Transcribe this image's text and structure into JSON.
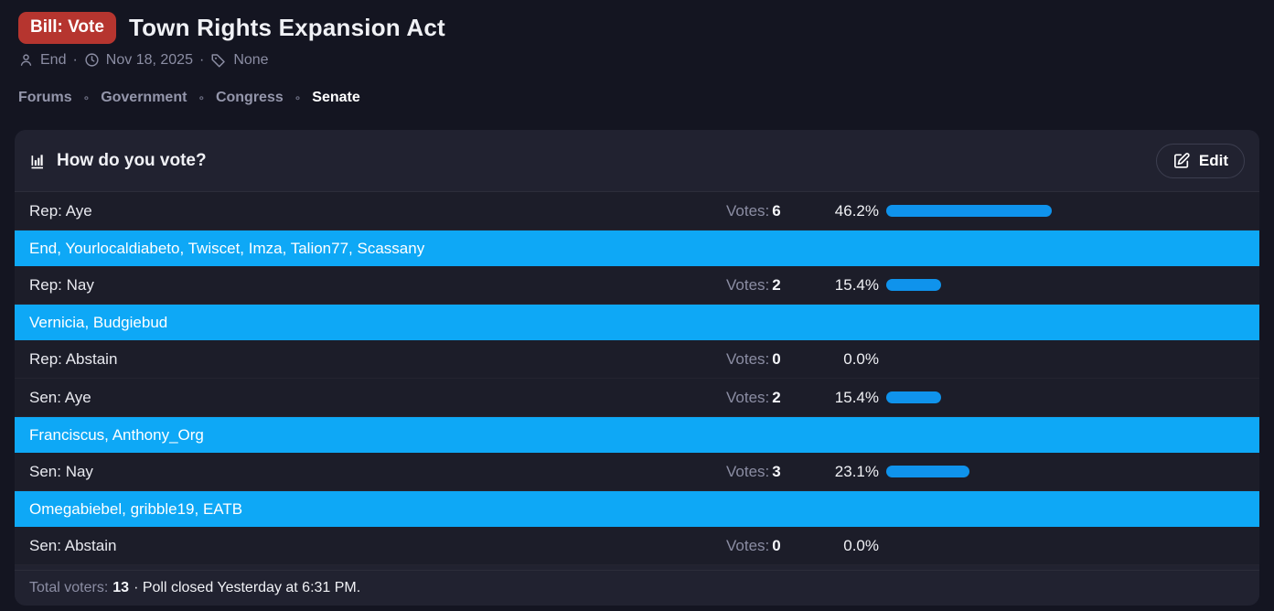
{
  "colors": {
    "page_bg": "#141521",
    "card_bg": "#212230",
    "row_bg": "#1c1d29",
    "badge_red": "#b6352f",
    "voter_band_blue": "#0ea8f6",
    "bar_blue": "#0f93ec",
    "muted_text": "#8b8da3",
    "white_text": "#f0f1f5"
  },
  "header": {
    "badge": "Bill: Vote",
    "title": "Town Rights Expansion Act",
    "meta": {
      "author": "End",
      "separator": "·",
      "date": "Nov 18, 2025",
      "tags": "None"
    }
  },
  "breadcrumb": {
    "separator": "∘",
    "items": [
      {
        "label": "Forums"
      },
      {
        "label": "Government"
      },
      {
        "label": "Congress"
      },
      {
        "label": "Senate"
      }
    ]
  },
  "poll": {
    "title": "How do you vote?",
    "edit_label": "Edit",
    "votes_label": "Votes:",
    "options": [
      {
        "label": "Rep: Aye",
        "votes": "6",
        "pct": "46.2%",
        "pct_value": 46.2,
        "voters": "End, Yourlocaldiabeto, Twiscet, Imza, Talion77, Scassany"
      },
      {
        "label": "Rep: Nay",
        "votes": "2",
        "pct": "15.4%",
        "pct_value": 15.4,
        "voters": "Vernicia, Budgiebud"
      },
      {
        "label": "Rep: Abstain",
        "votes": "0",
        "pct": "0.0%",
        "pct_value": 0,
        "voters": null
      },
      {
        "label": "Sen: Aye",
        "votes": "2",
        "pct": "15.4%",
        "pct_value": 15.4,
        "voters": "Franciscus, Anthony_Org"
      },
      {
        "label": "Sen: Nay",
        "votes": "3",
        "pct": "23.1%",
        "pct_value": 23.1,
        "voters": "Omegabiebel, gribble19, EATB"
      },
      {
        "label": "Sen: Abstain",
        "votes": "0",
        "pct": "0.0%",
        "pct_value": 0,
        "voters": null
      }
    ],
    "footer": {
      "total_label": "Total voters:",
      "total": "13",
      "closed": "· Poll closed Yesterday at 6:31 PM."
    }
  }
}
